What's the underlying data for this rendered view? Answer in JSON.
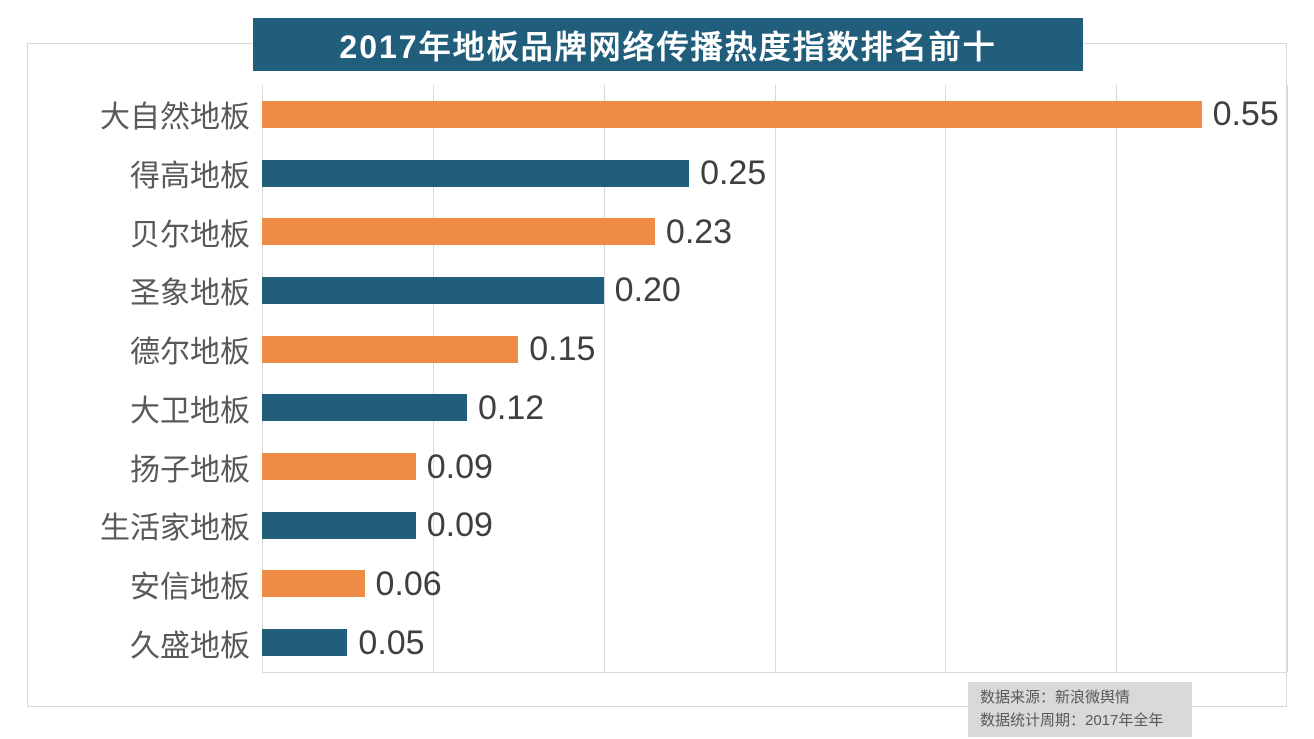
{
  "title": "2017年地板品牌网络传播热度指数排名前十",
  "chart_data": {
    "type": "bar",
    "orientation": "horizontal",
    "title": "2017年地板品牌网络传播热度指数排名前十",
    "categories": [
      "大自然地板",
      "得高地板",
      "贝尔地板",
      "圣象地板",
      "德尔地板",
      "大卫地板",
      "扬子地板",
      "生活家地板",
      "安信地板",
      "久盛地板"
    ],
    "values": [
      0.55,
      0.25,
      0.23,
      0.2,
      0.15,
      0.12,
      0.09,
      0.09,
      0.06,
      0.05
    ],
    "value_labels": [
      "0.55",
      "0.25",
      "0.23",
      "0.20",
      "0.15",
      "0.12",
      "0.09",
      "0.09",
      "0.06",
      "0.05"
    ],
    "xlim": [
      0,
      0.6
    ],
    "gridline_step": 0.1,
    "grid": "vertical-only",
    "tick_labels": "none",
    "legend": "none",
    "bar_palette": [
      "#ee8c45",
      "#215e7c"
    ]
  },
  "footer": {
    "source": "数据来源：新浪微舆情",
    "period": "数据统计周期：2017年全年"
  },
  "colors": {
    "bar_orange": "#ee8c45",
    "bar_blue": "#215e7c",
    "title_bg": "#215e7c",
    "title_text": "#ffffff",
    "grid_line": "#d9d9d9",
    "frame_border": "#d9d9d9",
    "category_label": "#595959",
    "value_label": "#3f3f3f",
    "footer_bg": "#d9d9d9",
    "footer_text": "#595959",
    "background": "#ffffff"
  }
}
